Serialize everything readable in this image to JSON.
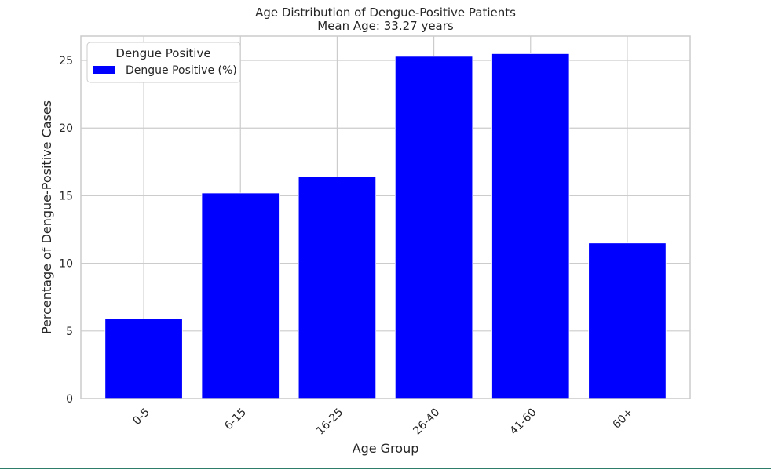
{
  "colors": {
    "bar": "#0000ff",
    "grid": "#cccccc",
    "frame": "#cccccc",
    "background": "#ffffff",
    "text": "#262626",
    "footer_rule": "#2e7d6b"
  },
  "chart_data": {
    "type": "bar",
    "title": "Age Distribution of Dengue-Positive Patients",
    "subtitle": "Mean Age: 33.27 years",
    "xlabel": "Age Group",
    "ylabel": "Percentage of Dengue-Positive Cases",
    "categories": [
      "0-5",
      "6-15",
      "16-25",
      "26-40",
      "41-60",
      "60+"
    ],
    "series": [
      {
        "name": "Dengue Positive (%)",
        "values": [
          5.9,
          15.2,
          16.4,
          25.3,
          25.5,
          11.5
        ]
      }
    ],
    "ylim": [
      0,
      26.8
    ],
    "yticks": [
      0,
      5,
      10,
      15,
      20,
      25
    ],
    "xtick_rotation": "45 degrees",
    "grid": true,
    "legend": {
      "title": "Dengue Positive",
      "placement": "top-left",
      "entries": [
        "Dengue Positive (%)"
      ]
    }
  }
}
